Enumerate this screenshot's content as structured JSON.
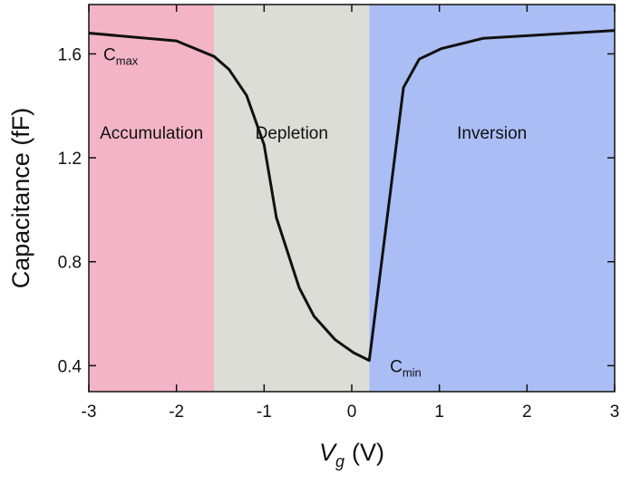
{
  "chart_data": {
    "type": "line",
    "x_label": {
      "main": "V",
      "sub": "g",
      "unit": "(V)"
    },
    "y_label": "Capacitance (fF)",
    "xlim": [
      -3,
      3
    ],
    "ylim": [
      0.3,
      1.79
    ],
    "xticks": [
      -3,
      -2,
      -1,
      0,
      1,
      2,
      3
    ],
    "yticks": [
      0.4,
      0.8,
      1.2,
      1.6
    ],
    "regions": [
      {
        "name": "Accumulation",
        "x": [
          -3,
          -1.57
        ],
        "color": "#f3b5c6"
      },
      {
        "name": "Depletion",
        "x": [
          -1.57,
          0.2
        ],
        "color": "#dcddd6"
      },
      {
        "name": "Inversion",
        "x": [
          0.2,
          3
        ],
        "color": "#aabef5"
      }
    ],
    "series": [
      {
        "name": null,
        "color": "#111111",
        "x": [
          -3,
          -2,
          -1.57,
          -1.4,
          -1.2,
          -1.0,
          -0.86,
          -0.6,
          -0.43,
          -0.19,
          0.02,
          0.2,
          0.59,
          0.77,
          1.02,
          1.5,
          3
        ],
        "values": [
          1.68,
          1.65,
          1.59,
          1.54,
          1.44,
          1.25,
          0.97,
          0.7,
          0.59,
          0.5,
          0.45,
          0.42,
          1.47,
          1.58,
          1.62,
          1.66,
          1.69
        ]
      }
    ],
    "annotations": [
      {
        "text": "C",
        "sub": "max",
        "x": -3,
        "y": 1.6
      },
      {
        "text": "C",
        "sub": "min",
        "x": 0.27,
        "y": 0.4
      }
    ]
  }
}
